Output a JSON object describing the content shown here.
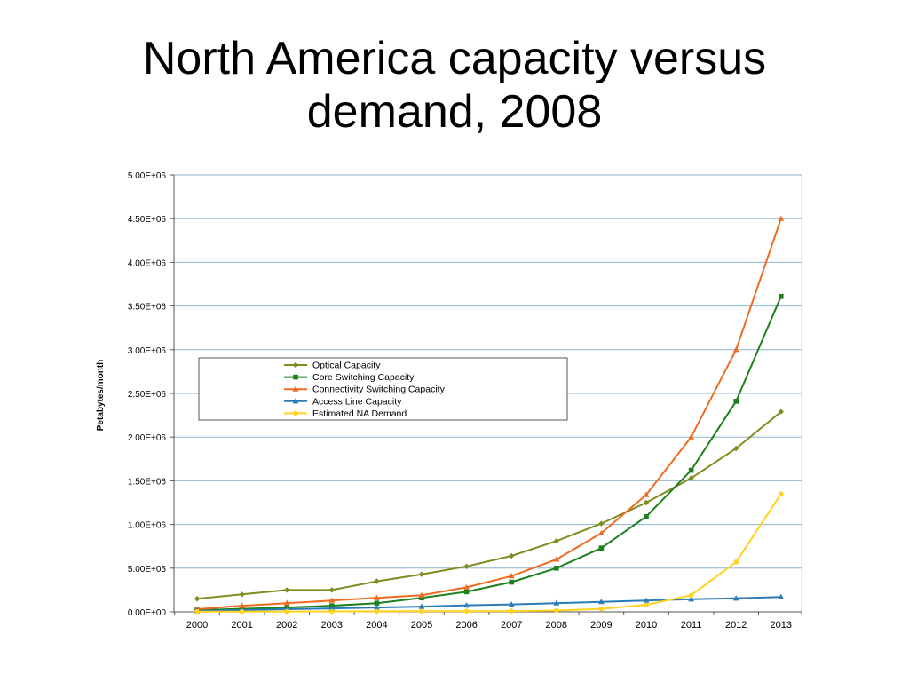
{
  "slide": {
    "title_line1": "North America capacity versus",
    "title_line2": "demand, 2008"
  },
  "chart_data": {
    "type": "line",
    "title": "",
    "xlabel": "",
    "ylabel": "Petabytes/month",
    "ylim": [
      0,
      5000000
    ],
    "y_ticks": [
      0,
      500000,
      1000000,
      1500000,
      2000000,
      2500000,
      3000000,
      3500000,
      4000000,
      4500000,
      5000000
    ],
    "y_tick_labels": [
      "0.00E+00",
      "5.00E+05",
      "1.00E+06",
      "1.50E+06",
      "2.00E+06",
      "2.50E+06",
      "3.00E+06",
      "3.50E+06",
      "4.00E+06",
      "4.50E+06",
      "5.00E+06"
    ],
    "grid": true,
    "legend_position": "center-left",
    "categories": [
      "2000",
      "2001",
      "2002",
      "2003",
      "2004",
      "2005",
      "2006",
      "2007",
      "2008",
      "2009",
      "2010",
      "2011",
      "2012",
      "2013"
    ],
    "series": [
      {
        "name": "Optical Capacity",
        "color": "#7f8c1e",
        "marker": "diamond",
        "values": [
          150000,
          200000,
          250000,
          250000,
          350000,
          430000,
          520000,
          640000,
          810000,
          1010000,
          1250000,
          1530000,
          1870000,
          2290000
        ]
      },
      {
        "name": "Core Switching Capacity",
        "color": "#1d7f1d",
        "marker": "square",
        "values": [
          20000,
          35000,
          50000,
          70000,
          100000,
          160000,
          230000,
          340000,
          500000,
          730000,
          1090000,
          1620000,
          2410000,
          3610000
        ]
      },
      {
        "name": "Connectivity Switching Capacity",
        "color": "#f06b22",
        "marker": "triangle",
        "values": [
          30000,
          70000,
          100000,
          130000,
          160000,
          190000,
          280000,
          410000,
          600000,
          900000,
          1340000,
          2000000,
          3000000,
          4500000
        ]
      },
      {
        "name": "Access Line Capacity",
        "color": "#2b7bb9",
        "marker": "triangle",
        "values": [
          10000,
          20000,
          30000,
          40000,
          50000,
          60000,
          75000,
          85000,
          100000,
          115000,
          130000,
          145000,
          155000,
          170000
        ]
      },
      {
        "name": "Estimated NA  Demand",
        "color": "#ffd21f",
        "marker": "circle",
        "values": [
          2000,
          3000,
          4000,
          5000,
          6000,
          7000,
          8000,
          9000,
          15000,
          35000,
          80000,
          190000,
          570000,
          1350000
        ]
      }
    ]
  }
}
